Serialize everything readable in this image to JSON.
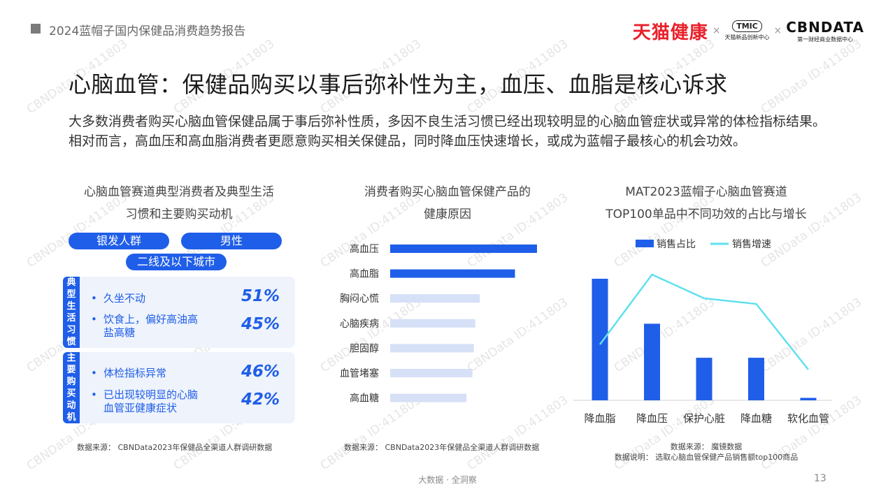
{
  "header": {
    "report_title": "2024蓝帽子国内保健品消费趋势报告",
    "logo_tmall": "天猫健康",
    "logo_sep": "×",
    "logo_tmic_mark": "TMIC",
    "logo_tmic_sub": "天猫新品创新中心",
    "logo_cbn_mark": "CBNDATA",
    "logo_cbn_sub": "第一财经商业数据中心"
  },
  "title": "心脑血管：保健品购买以事后弥补性为主，血压、血脂是核心诉求",
  "description": "大多数消费者购买心脑血管保健品属于事后弥补性质，多因不良生活习惯已经出现较明显的心脑血管症状或异常的体检指标结果。相对而言，高血压和高血脂消费者更愿意购买相关保健品，同时降血压快速增长，或成为蓝帽子最核心的机会功效。",
  "left_panel": {
    "title_line1": "心脑血管赛道典型消费者及典型生活",
    "title_line2": "习惯和主要购买动机",
    "tags": [
      "银发人群",
      "男性",
      "二线及以下城市"
    ],
    "habits": {
      "label": "典型生活习惯",
      "items": [
        {
          "text": "久坐不动",
          "pct": "51%"
        },
        {
          "text": "饮食上，偏好高油高盐高糖",
          "pct": "45%"
        }
      ]
    },
    "motives": {
      "label": "主要购买动机",
      "items": [
        {
          "text": "体检指标异常",
          "pct": "46%"
        },
        {
          "text": "已出现较明显的心脑血管亚健康症状",
          "pct": "42%"
        }
      ]
    },
    "source": "数据来源：  CBNData2023年保健品全渠道人群调研数据"
  },
  "middle_panel": {
    "title_line1": "消费者购买心脑血管保健产品的",
    "title_line2": "健康原因",
    "source": "数据来源：  CBNData2023年保健品全渠道人群调研数据"
  },
  "right_panel": {
    "title_line1": "MAT2023蓝帽子心脑血管赛道",
    "title_line2": "TOP100单品中不同功效的占比与增长",
    "source": "数据来源：  魔镜数据",
    "note": "数据说明：  选取心脑血管保健产品销售额top100商品"
  },
  "chart_data": [
    {
      "type": "bar",
      "orientation": "horizontal",
      "categories": [
        "高血压",
        "高血脂",
        "胸闷心慌",
        "心脑疾病",
        "胆固醇",
        "血管堵塞",
        "高血糖"
      ],
      "values": [
        100,
        85,
        61,
        58,
        57,
        56,
        52
      ],
      "highlighted": [
        "高血压",
        "高血脂"
      ],
      "colors": {
        "highlight": "#1f5ee8",
        "normal": "#d6e0f7"
      }
    },
    {
      "type": "bar",
      "categories": [
        "降血脂",
        "降血压",
        "保护心脏",
        "降血糖",
        "软化血管"
      ],
      "series": [
        {
          "name": "销售占比",
          "type": "bar",
          "color": "#1f5ee8",
          "values": [
            100,
            63,
            35,
            35,
            2
          ]
        },
        {
          "name": "销售增速",
          "type": "line",
          "color": "#5fe0f0",
          "values": [
            40,
            90,
            73,
            69,
            22
          ]
        }
      ],
      "legend": "top"
    }
  ],
  "footer": {
    "text": "大数据 · 全洞察",
    "page": "13"
  },
  "watermark": "CBNData ID:411803"
}
